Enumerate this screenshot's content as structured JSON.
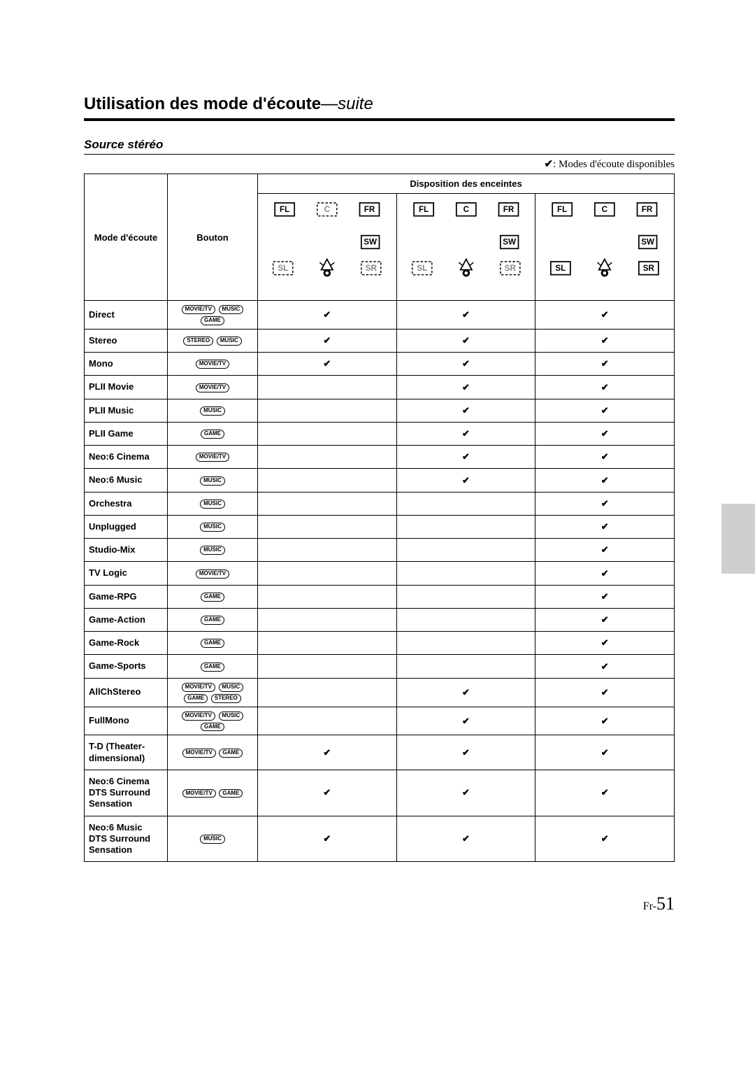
{
  "heading_main": "Utilisation des mode d'écoute",
  "heading_suite": "—suite",
  "subheading": "Source stéréo",
  "legend_check": "✔",
  "legend_text": ": Modes d'écoute disponibles",
  "table": {
    "header_mode": "Mode d'écoute",
    "header_button": "Bouton",
    "header_disposition": "Disposition des enceintes",
    "diagrams": [
      {
        "fl": "FL",
        "c": "C",
        "fr": "FR",
        "sw": "SW",
        "sl": "SL",
        "sr": "SR",
        "c_solid": false,
        "sl_solid": false,
        "sr_solid": false
      },
      {
        "fl": "FL",
        "c": "C",
        "fr": "FR",
        "sw": "SW",
        "sl": "SL",
        "sr": "SR",
        "c_solid": true,
        "sl_solid": false,
        "sr_solid": false
      },
      {
        "fl": "FL",
        "c": "C",
        "fr": "FR",
        "sw": "SW",
        "sl": "SL",
        "sr": "SR",
        "c_solid": true,
        "sl_solid": true,
        "sr_solid": true
      }
    ],
    "rows": [
      {
        "mode": "Direct",
        "buttons": [
          "MOVIE/TV",
          "MUSIC",
          "GAME"
        ],
        "checks": [
          "✔",
          "✔",
          "✔"
        ]
      },
      {
        "mode": "Stereo",
        "buttons": [
          "STEREO",
          "MUSIC"
        ],
        "checks": [
          "✔",
          "✔",
          "✔"
        ]
      },
      {
        "mode": "Mono",
        "buttons": [
          "MOVIE/TV"
        ],
        "checks": [
          "✔",
          "✔",
          "✔"
        ]
      },
      {
        "mode": "PLII Movie",
        "buttons": [
          "MOVIE/TV"
        ],
        "checks": [
          "",
          "✔",
          "✔"
        ]
      },
      {
        "mode": "PLII Music",
        "buttons": [
          "MUSIC"
        ],
        "checks": [
          "",
          "✔",
          "✔"
        ]
      },
      {
        "mode": "PLII Game",
        "buttons": [
          "GAME"
        ],
        "checks": [
          "",
          "✔",
          "✔"
        ]
      },
      {
        "mode": "Neo:6 Cinema",
        "buttons": [
          "MOVIE/TV"
        ],
        "checks": [
          "",
          "✔",
          "✔"
        ]
      },
      {
        "mode": "Neo:6 Music",
        "buttons": [
          "MUSIC"
        ],
        "checks": [
          "",
          "✔",
          "✔"
        ]
      },
      {
        "mode": "Orchestra",
        "buttons": [
          "MUSIC"
        ],
        "checks": [
          "",
          "",
          "✔"
        ]
      },
      {
        "mode": "Unplugged",
        "buttons": [
          "MUSIC"
        ],
        "checks": [
          "",
          "",
          "✔"
        ]
      },
      {
        "mode": "Studio-Mix",
        "buttons": [
          "MUSIC"
        ],
        "checks": [
          "",
          "",
          "✔"
        ]
      },
      {
        "mode": "TV Logic",
        "buttons": [
          "MOVIE/TV"
        ],
        "checks": [
          "",
          "",
          "✔"
        ]
      },
      {
        "mode": "Game-RPG",
        "buttons": [
          "GAME"
        ],
        "checks": [
          "",
          "",
          "✔"
        ]
      },
      {
        "mode": "Game-Action",
        "buttons": [
          "GAME"
        ],
        "checks": [
          "",
          "",
          "✔"
        ]
      },
      {
        "mode": "Game-Rock",
        "buttons": [
          "GAME"
        ],
        "checks": [
          "",
          "",
          "✔"
        ]
      },
      {
        "mode": "Game-Sports",
        "buttons": [
          "GAME"
        ],
        "checks": [
          "",
          "",
          "✔"
        ]
      },
      {
        "mode": "AllChStereo",
        "buttons": [
          "MOVIE/TV",
          "MUSIC",
          "GAME",
          "STEREO"
        ],
        "checks": [
          "",
          "✔",
          "✔"
        ]
      },
      {
        "mode": "FullMono",
        "buttons": [
          "MOVIE/TV",
          "MUSIC",
          "GAME"
        ],
        "checks": [
          "",
          "✔",
          "✔"
        ]
      },
      {
        "mode": "T-D (Theater-dimensional)",
        "buttons": [
          "MOVIE/TV",
          "GAME"
        ],
        "checks": [
          "✔",
          "✔",
          "✔"
        ]
      },
      {
        "mode": "Neo:6 Cinema DTS Surround Sensation",
        "buttons": [
          "MOVIE/TV",
          "GAME"
        ],
        "checks": [
          "✔",
          "✔",
          "✔"
        ]
      },
      {
        "mode": "Neo:6 Music DTS Surround Sensation",
        "buttons": [
          "MUSIC"
        ],
        "checks": [
          "✔",
          "✔",
          "✔"
        ]
      }
    ]
  },
  "page_prefix": "Fr-",
  "page_number": "51"
}
